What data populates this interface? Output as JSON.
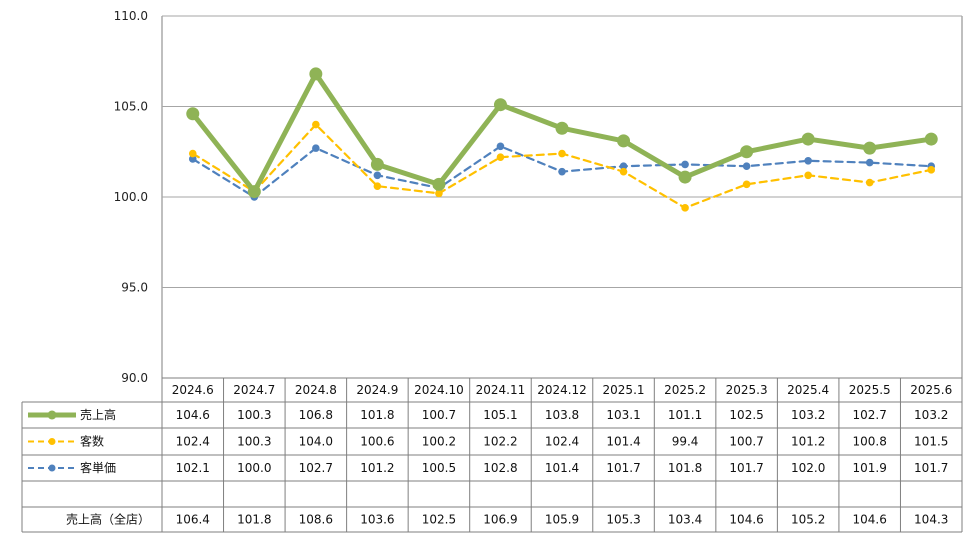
{
  "chart_data": {
    "type": "line",
    "categories": [
      "2024.6",
      "2024.7",
      "2024.8",
      "2024.9",
      "2024.10",
      "2024.11",
      "2024.12",
      "2025.1",
      "2025.2",
      "2025.3",
      "2025.4",
      "2025.5",
      "2025.6"
    ],
    "ylim": [
      90.0,
      110.0
    ],
    "y_ticks": [
      "90.0",
      "95.0",
      "100.0",
      "105.0",
      "110.0"
    ],
    "grid": true,
    "legend_placement": "data-table-left",
    "series": [
      {
        "name": "売上高",
        "color": "#8FB356",
        "style": "solid",
        "values": [
          104.6,
          100.3,
          106.8,
          101.8,
          100.7,
          105.1,
          103.8,
          103.1,
          101.1,
          102.5,
          103.2,
          102.7,
          103.2
        ]
      },
      {
        "name": "客数",
        "color": "#FFC000",
        "style": "dashed",
        "values": [
          102.4,
          100.3,
          104.0,
          100.6,
          100.2,
          102.2,
          102.4,
          101.4,
          99.4,
          100.7,
          101.2,
          100.8,
          101.5
        ]
      },
      {
        "name": "客単価",
        "color": "#4F81BD",
        "style": "dashed",
        "values": [
          102.1,
          100.0,
          102.7,
          101.2,
          100.5,
          102.8,
          101.4,
          101.7,
          101.8,
          101.7,
          102.0,
          101.9,
          101.7
        ]
      }
    ],
    "table_rows": [
      {
        "label": "売上高",
        "series_index": 0,
        "values": [
          "104.6",
          "100.3",
          "106.8",
          "101.8",
          "100.7",
          "105.1",
          "103.8",
          "103.1",
          "101.1",
          "102.5",
          "103.2",
          "102.7",
          "103.2"
        ]
      },
      {
        "label": "客数",
        "series_index": 1,
        "values": [
          "102.4",
          "100.3",
          "104.0",
          "100.6",
          "100.2",
          "102.2",
          "102.4",
          "101.4",
          "99.4",
          "100.7",
          "101.2",
          "100.8",
          "101.5"
        ]
      },
      {
        "label": "客単価",
        "series_index": 2,
        "values": [
          "102.1",
          "100.0",
          "102.7",
          "101.2",
          "100.5",
          "102.8",
          "101.4",
          "101.7",
          "101.8",
          "101.7",
          "102.0",
          "101.9",
          "101.7"
        ]
      },
      {
        "label": "",
        "series_index": null,
        "values": [
          "",
          "",
          "",
          "",
          "",
          "",
          "",
          "",
          "",
          "",
          "",
          "",
          ""
        ]
      },
      {
        "label": "売上高（全店）",
        "series_index": null,
        "values": [
          "106.4",
          "101.8",
          "108.6",
          "103.6",
          "102.5",
          "106.9",
          "105.9",
          "105.3",
          "103.4",
          "104.6",
          "105.2",
          "104.6",
          "104.3"
        ]
      }
    ]
  }
}
